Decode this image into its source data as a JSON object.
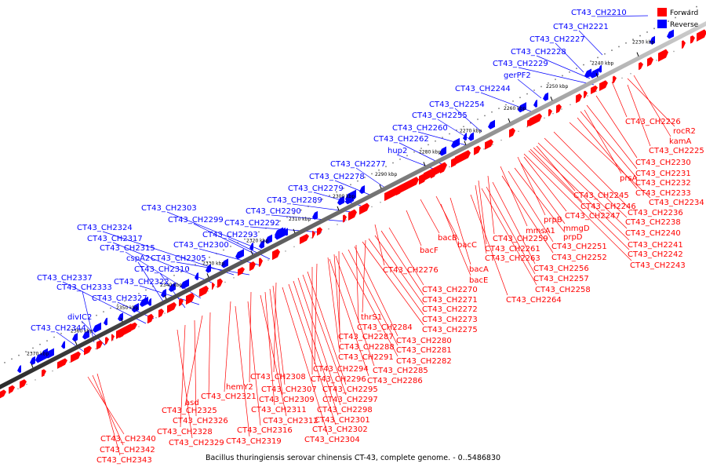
{
  "caption": "Bacillus thuringiensis serovar chinensis CT-43, complete genome. - 0..5486830",
  "legend": {
    "forward_label": "Forward",
    "reverse_label": "Reverse",
    "forward_color": "#ff0000",
    "reverse_color": "#0000ff"
  },
  "ticks": [
    "2230 kbp",
    "2240 kbp",
    "2250 kbp",
    "2260 kbp",
    "2270 kbp",
    "2280 kbp",
    "2290 kbp",
    "2300 kbp",
    "2310 kbp",
    "2320 kbp",
    "2330 kbp",
    "2340 kbp",
    "2350 kbp",
    "2360 kbp",
    "2370 kbp"
  ],
  "reverse_labels": [
    "CT43_CH2210",
    "CT43_CH2221",
    "CT43_CH2227",
    "CT43_CH2228",
    "CT43_CH2229",
    "gerPF2",
    "CT43_CH2244",
    "CT43_CH2254",
    "CT43_CH2255",
    "CT43_CH2260",
    "CT43_CH2262",
    "hup2",
    "CT43_CH2277",
    "CT43_CH2278",
    "CT43_CH2279",
    "CT43_CH2289",
    "CT43_CH2290",
    "CT43_CH2303",
    "CT43_CH2299",
    "CT43_CH2292",
    "CT43_CH2293",
    "CT43_CH2324",
    "CT43_CH2317",
    "CT43_CH2300",
    "CT43_CH2315",
    "cspA2",
    "CT43_CH2305",
    "CT43_CH2310",
    "CT43_CH2337",
    "CT43_CH2322",
    "CT43_CH2333",
    "CT43_CH2327",
    "divIC2",
    "CT43_CH2344"
  ],
  "forward_labels_right": [
    "CT43_CH2226",
    "rocR2",
    "kamA",
    "CT43_CH2225",
    "CT43_CH2230",
    "CT43_CH2231",
    "prsA",
    "CT43_CH2232",
    "CT43_CH2233",
    "CT43_CH2245",
    "CT43_CH2234",
    "CT43_CH2246",
    "CT43_CH2236",
    "prpB",
    "CT43_CH2247",
    "CT43_CH2238",
    "mmsA1",
    "mmgD",
    "CT43_CH2240",
    "CT43_CH2259",
    "prpD",
    "CT43_CH2241",
    "CT43_CH2261",
    "CT43_CH2251",
    "CT43_CH2242",
    "bacB",
    "bacC",
    "CT43_CH2263",
    "CT43_CH2252",
    "CT43_CH2243",
    "bacF",
    "CT43_CH2256",
    "bacA",
    "CT43_CH2276",
    "CT43_CH2257",
    "bacE",
    "CT43_CH2258",
    "CT43_CH2270",
    "CT43_CH2264",
    "CT43_CH2271",
    "CT43_CH2272",
    "thrS1",
    "CT43_CH2273",
    "CT43_CH2284",
    "CT43_CH2275",
    "CT43_CH2287",
    "CT43_CH2280",
    "CT43_CH2288",
    "CT43_CH2281",
    "CT43_CH2291",
    "CT43_CH2282",
    "CT43_CH2294",
    "CT43_CH2285",
    "CT43_CH2296",
    "CT43_CH2286"
  ],
  "forward_labels_left": [
    "CT43_CH2308",
    "CT43_CH2295",
    "hemY2",
    "CT43_CH2307",
    "CT43_CH2321",
    "CT43_CH2309",
    "CT43_CH2297",
    "asd",
    "CT43_CH2311",
    "CT43_CH2298",
    "CT43_CH2325",
    "CT43_CH2312",
    "CT43_CH2301",
    "CT43_CH2326",
    "CT43_CH2316",
    "CT43_CH2302",
    "CT43_CH2328",
    "CT43_CH2304",
    "CT43_CH2329",
    "CT43_CH2319",
    "CT43_CH2340",
    "CT43_CH2342",
    "CT43_CH2343"
  ]
}
